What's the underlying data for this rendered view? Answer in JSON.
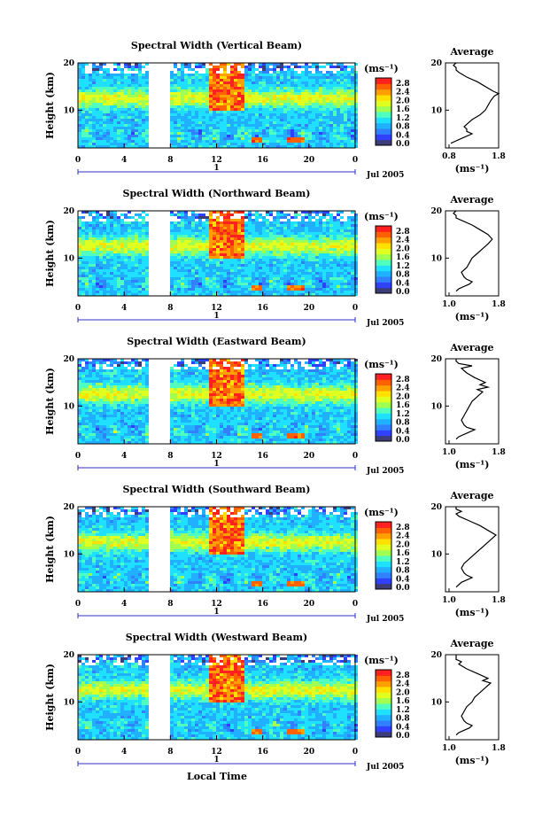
{
  "chart_data": {
    "type": "heatmap",
    "x_axis": {
      "range": [
        0,
        24
      ],
      "ticks": [
        "0",
        "4",
        "8",
        "12",
        "16",
        "20",
        "0"
      ],
      "day_marker": "1",
      "date_label": "Jul 2005",
      "label": "Local Time"
    },
    "y_axis": {
      "label": "Height (km)",
      "range": [
        2,
        20
      ],
      "ticks": [
        "20",
        "10"
      ]
    },
    "colorbar": {
      "unit": "(ms⁻¹)",
      "ticks": [
        "2.8",
        "2.4",
        "2.0",
        "1.6",
        "1.2",
        "0.8",
        "0.4",
        "0.0"
      ],
      "colors": [
        "#3c3c78",
        "#3040ff",
        "#3080ff",
        "#20b0ff",
        "#20e0ff",
        "#50ffc0",
        "#a0ff50",
        "#e0ff20",
        "#ffe000",
        "#ffa000",
        "#ff6000",
        "#ff2020"
      ]
    },
    "data_gap_hours": [
      6.2,
      8.0
    ],
    "panels": [
      {
        "title": "Spectral Width (Vertical Beam)",
        "avg_title": "Average",
        "avg_xticks": [
          "0.8",
          "1.8"
        ],
        "avg_xlim": [
          0.8,
          1.8
        ],
        "avg_xlabel": "(ms⁻¹)",
        "avg_profile": {
          "height": [
            3,
            3.5,
            4,
            4.5,
            5,
            5.5,
            6,
            6.5,
            7,
            8,
            9,
            10,
            11,
            12,
            13,
            13.5,
            14,
            15,
            16,
            17,
            18,
            18.5,
            19,
            19.5,
            20
          ],
          "width": [
            0.9,
            1.0,
            1.1,
            1.2,
            1.3,
            1.2,
            1.2,
            1.15,
            1.2,
            1.3,
            1.45,
            1.55,
            1.6,
            1.65,
            1.72,
            1.8,
            1.7,
            1.55,
            1.4,
            1.2,
            1.05,
            1.0,
            1.0,
            0.95,
            1.0
          ]
        }
      },
      {
        "title": "Spectral Width (Northward Beam)",
        "avg_title": "Average",
        "avg_xticks": [
          "1.0",
          "1.8"
        ],
        "avg_xlim": [
          0.8,
          1.8
        ],
        "avg_xlabel": "(ms⁻¹)",
        "avg_profile": {
          "height": [
            3,
            3.5,
            4,
            4.5,
            5,
            5.5,
            6,
            7,
            8,
            9,
            10,
            11,
            12,
            13,
            14,
            15,
            16,
            17,
            18,
            18.5,
            19,
            19.5,
            20
          ],
          "width": [
            1.0,
            1.05,
            1.15,
            1.25,
            1.3,
            1.2,
            1.15,
            1.1,
            1.2,
            1.25,
            1.3,
            1.4,
            1.5,
            1.6,
            1.68,
            1.6,
            1.45,
            1.3,
            1.1,
            1.0,
            1.0,
            0.95,
            1.0
          ]
        }
      },
      {
        "title": "Spectral Width (Eastward Beam)",
        "avg_title": "Average",
        "avg_xticks": [
          "1.0",
          "1.8"
        ],
        "avg_xlim": [
          0.8,
          1.8
        ],
        "avg_xlabel": "(ms⁻¹)",
        "avg_profile": {
          "height": [
            3,
            3.5,
            4,
            4.5,
            5,
            5.5,
            6,
            7,
            8,
            9,
            10,
            11,
            12,
            13,
            13.5,
            14,
            14.5,
            15,
            16,
            17,
            18,
            18.5,
            19,
            19.5,
            20
          ],
          "width": [
            1.0,
            1.05,
            1.15,
            1.25,
            1.35,
            1.2,
            1.15,
            1.1,
            1.15,
            1.2,
            1.25,
            1.3,
            1.4,
            1.5,
            1.4,
            1.6,
            1.45,
            1.55,
            1.35,
            1.2,
            1.1,
            1.3,
            1.05,
            1.0,
            1.0
          ]
        }
      },
      {
        "title": "Spectral Width (Southward Beam)",
        "avg_title": "Average",
        "avg_xticks": [
          "1.0",
          "1.8"
        ],
        "avg_xlim": [
          0.8,
          1.8
        ],
        "avg_xlabel": "(ms⁻¹)",
        "avg_profile": {
          "height": [
            3,
            3.5,
            4,
            4.5,
            5,
            5.5,
            6,
            7,
            8,
            9,
            10,
            11,
            12,
            13,
            14,
            15,
            16,
            17,
            18,
            18.5,
            19,
            19.5,
            20
          ],
          "width": [
            1.0,
            1.05,
            1.1,
            1.2,
            1.3,
            1.2,
            1.15,
            1.1,
            1.15,
            1.25,
            1.35,
            1.45,
            1.55,
            1.65,
            1.75,
            1.6,
            1.45,
            1.25,
            1.05,
            1.0,
            1.1,
            1.0,
            1.0
          ]
        }
      },
      {
        "title": "Spectral Width (Westward Beam)",
        "avg_title": "Average",
        "avg_xticks": [
          "1.0",
          "1.8"
        ],
        "avg_xlim": [
          0.8,
          1.8
        ],
        "avg_xlabel": "(ms⁻¹)",
        "avg_profile": {
          "height": [
            3,
            3.5,
            4,
            4.5,
            5,
            5.5,
            6,
            7,
            8,
            9,
            10,
            11,
            12,
            13,
            14,
            14.5,
            15,
            16,
            17,
            18,
            18.5,
            19,
            19.5,
            20
          ],
          "width": [
            1.0,
            1.05,
            1.15,
            1.25,
            1.3,
            1.2,
            1.15,
            1.1,
            1.15,
            1.2,
            1.3,
            1.35,
            1.45,
            1.55,
            1.65,
            1.5,
            1.6,
            1.4,
            1.2,
            1.05,
            1.1,
            1.0,
            1.0,
            1.0
          ]
        }
      }
    ]
  }
}
